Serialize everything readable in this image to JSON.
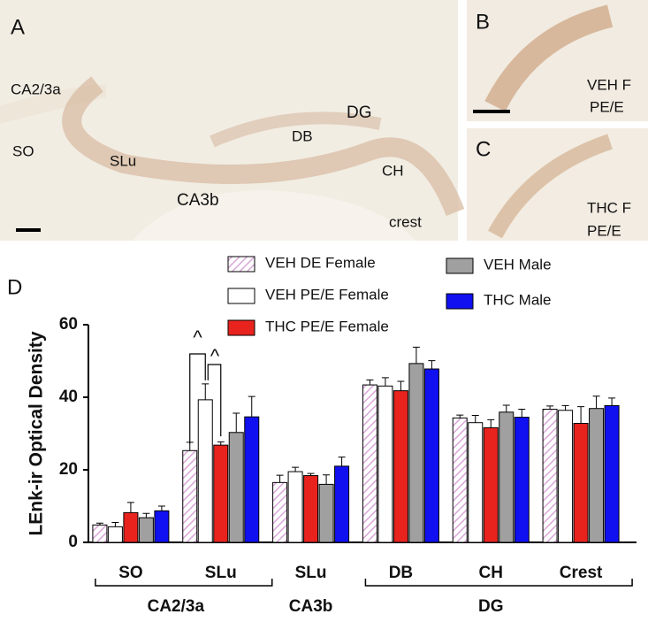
{
  "panels": [
    {
      "label": "A",
      "texts": [
        "CA2/3a",
        "SO",
        "SLu",
        "CA3b",
        "DB",
        "DG",
        "CH",
        "crest"
      ]
    },
    {
      "label": "B",
      "texts": [
        "VEH F",
        "PE/E"
      ]
    },
    {
      "label": "C",
      "texts": [
        "THC F",
        "PE/E"
      ]
    }
  ],
  "chart_data": {
    "type": "bar",
    "panel_label": "D",
    "y_label": "LEnk-ir Optical Density",
    "categories": [
      "SO",
      "SLu",
      "SLu",
      "DB",
      "CH",
      "Crest"
    ],
    "groups": [
      "CA2/3a",
      "CA3b",
      "DG"
    ],
    "ylim": [
      0,
      60
    ],
    "yticks": [
      0,
      20,
      40,
      60
    ],
    "series": [
      {
        "name": "VEH DE Female",
        "color": "#d9a6d9",
        "hatch": true,
        "values": [
          4.8,
          25.3,
          16.5,
          43.4,
          34.3,
          36.7
        ],
        "errors": [
          0.5,
          2.3,
          2.0,
          1.4,
          0.8,
          0.9
        ]
      },
      {
        "name": "VEH PE/E Female",
        "color": "#ffffff",
        "values": [
          4.3,
          39.3,
          19.5,
          43.1,
          33.0,
          36.4
        ],
        "errors": [
          1.2,
          4.4,
          1.2,
          2.3,
          2.0,
          1.3
        ]
      },
      {
        "name": "THC PE/E Female",
        "color": "#e8231e",
        "values": [
          8.2,
          26.8,
          18.4,
          41.8,
          31.6,
          32.8
        ],
        "errors": [
          2.8,
          0.9,
          0.6,
          2.6,
          2.2,
          4.6
        ]
      },
      {
        "name": "VEH Male",
        "color": "#a0a0a0",
        "values": [
          6.8,
          30.3,
          16.0,
          49.3,
          35.9,
          36.9
        ],
        "errors": [
          1.2,
          5.3,
          2.6,
          4.5,
          1.9,
          3.4
        ]
      },
      {
        "name": "THC Male",
        "color": "#1010f0",
        "values": [
          8.7,
          34.6,
          21.0,
          47.8,
          34.5,
          37.7
        ],
        "errors": [
          1.3,
          5.6,
          2.5,
          2.3,
          2.2,
          2.1
        ]
      }
    ],
    "annotations": [
      "^",
      "^"
    ]
  }
}
